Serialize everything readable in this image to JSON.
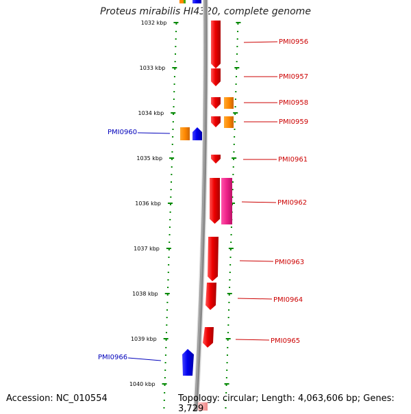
{
  "title": "Proteus mirabilis HI4320, complete genome",
  "accession": "Accession: NC_010554",
  "summary": "Topology: circular; Length: 4,063,606 bp; Genes: 3,729",
  "ticks": [
    "1032 kbp",
    "1033 kbp",
    "1034 kbp",
    "1035 kbp",
    "1036 kbp",
    "1037 kbp",
    "1038 kbp",
    "1039 kbp",
    "1040 kbp"
  ],
  "genes": [
    {
      "label": "PMI0956",
      "strand": "forward",
      "color": "#ee0000"
    },
    {
      "label": "PMI0957",
      "strand": "forward",
      "color": "#ee0000"
    },
    {
      "label": "PMI0958",
      "strand": "forward",
      "color": "#ee0000"
    },
    {
      "label": "PMI0959",
      "strand": "forward",
      "color": "#ee0000"
    },
    {
      "label": "PMI0960",
      "strand": "reverse",
      "color": "#0000cc"
    },
    {
      "label": "PMI0961",
      "strand": "forward",
      "color": "#ee0000"
    },
    {
      "label": "PMI0962",
      "strand": "forward",
      "color": "#ee0000"
    },
    {
      "label": "PMI0963",
      "strand": "forward",
      "color": "#ee0000"
    },
    {
      "label": "PMI0964",
      "strand": "forward",
      "color": "#ee0000"
    },
    {
      "label": "PMI0965",
      "strand": "forward",
      "color": "#ee0000"
    },
    {
      "label": "PMI0966",
      "strand": "reverse",
      "color": "#0000cc"
    }
  ],
  "colors": {
    "forward_cds": "#ee0000",
    "reverse_cds": "#0000ee",
    "cog_orange": "#ff8800",
    "cog_magenta": "#ee2288",
    "tick_green": "#008800",
    "backbone": "#888888",
    "forward_label": "#cc0000",
    "reverse_label": "#0000bb"
  }
}
